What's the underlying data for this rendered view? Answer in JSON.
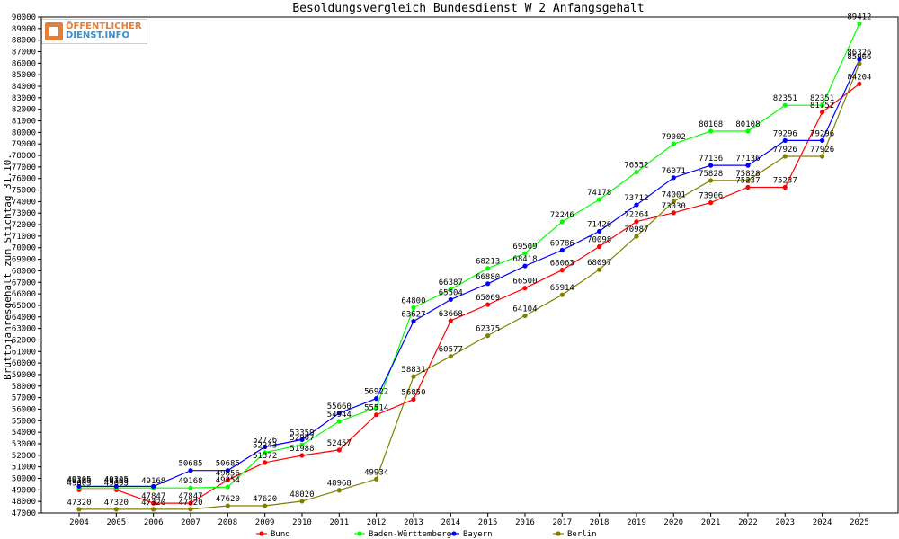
{
  "logo": {
    "line1": "ÖFFENTLICHER",
    "line2": "DIENST.INFO"
  },
  "chart_data": {
    "type": "line",
    "title": "Besoldungsvergleich Bundesdienst W 2 Anfangsgehalt",
    "xlabel": "",
    "ylabel": "Bruttojahresgehalt zum Stichtag 31.10.",
    "ylim": [
      47000,
      90000
    ],
    "y_ticks": [
      47000,
      48000,
      49000,
      50000,
      51000,
      52000,
      53000,
      54000,
      55000,
      56000,
      57000,
      58000,
      59000,
      60000,
      61000,
      62000,
      63000,
      64000,
      65000,
      66000,
      67000,
      68000,
      69000,
      70000,
      71000,
      72000,
      73000,
      74000,
      75000,
      76000,
      77000,
      78000,
      79000,
      80000,
      81000,
      82000,
      83000,
      84000,
      85000,
      86000,
      87000,
      88000,
      89000,
      90000
    ],
    "categories": [
      "2004",
      "2005",
      "2006",
      "2007",
      "2008",
      "2009",
      "2010",
      "2011",
      "2012",
      "2013",
      "2014",
      "2015",
      "2016",
      "2017",
      "2018",
      "2019",
      "2020",
      "2021",
      "2022",
      "2023",
      "2024",
      "2025"
    ],
    "grid": false,
    "legend_position": "bottom",
    "series": [
      {
        "name": "Bund",
        "color": "#ff0000",
        "values": [
          49003,
          49003,
          47847,
          47847,
          49856,
          51372,
          51988,
          52457,
          55514,
          56850,
          63668,
          65069,
          66500,
          68063,
          70098,
          72264,
          73030,
          73906,
          75237,
          75237,
          81752,
          84204
        ],
        "labels": [
          "49003",
          "49003",
          "47847",
          "47847",
          "49856",
          "51372",
          "51988",
          "52457",
          "55514",
          "56850",
          "63668",
          "65069",
          "66500",
          "68063",
          "70098",
          "72264",
          "73030",
          "73906",
          "75237",
          "75237",
          "81752",
          "84204"
        ]
      },
      {
        "name": "Baden-Württemberg",
        "color": "#00ff00",
        "values": [
          49168,
          49168,
          49168,
          49168,
          49254,
          52243,
          52907,
          54944,
          56128,
          64800,
          66387,
          68213,
          69509,
          72246,
          74178,
          76552,
          79002,
          80108,
          80108,
          82351,
          82351,
          89412
        ],
        "labels": [
          "49168",
          "49168",
          "49168",
          "49168",
          "49254",
          "52243",
          "52907",
          "54944",
          "",
          "64800",
          "66387",
          "68213",
          "69509",
          "72246",
          "74178",
          "76552",
          "79002",
          "80108",
          "80108",
          "82351",
          "82351",
          "89412"
        ]
      },
      {
        "name": "Bayern",
        "color": "#0000ff",
        "values": [
          49305,
          49305,
          49305,
          50685,
          50685,
          52726,
          53359,
          55660,
          56922,
          63627,
          65504,
          66880,
          68418,
          69786,
          71426,
          73712,
          76071,
          77136,
          77136,
          79296,
          79296,
          86326
        ],
        "labels": [
          "49305",
          "49305",
          "",
          "50685",
          "50685",
          "52726",
          "53359",
          "55660",
          "56922",
          "63627",
          "65504",
          "66880",
          "68418",
          "69786",
          "71426",
          "73712",
          "76071",
          "77136",
          "77136",
          "79296",
          "79296",
          "86326"
        ]
      },
      {
        "name": "Berlin",
        "color": "#808000",
        "values": [
          47320,
          47320,
          47320,
          47320,
          47620,
          47620,
          48020,
          48968,
          49934,
          58831,
          60577,
          62375,
          64104,
          65914,
          68097,
          70987,
          74001,
          75828,
          75828,
          77926,
          77926,
          85966
        ],
        "labels": [
          "47320",
          "47320",
          "47320",
          "47320",
          "47620",
          "47620",
          "48020",
          "48968",
          "49934",
          "58831",
          "60577",
          "62375",
          "64104",
          "65914",
          "68097",
          "70987",
          "74001",
          "75828",
          "75828",
          "77926",
          "77926",
          "85966"
        ]
      }
    ]
  }
}
